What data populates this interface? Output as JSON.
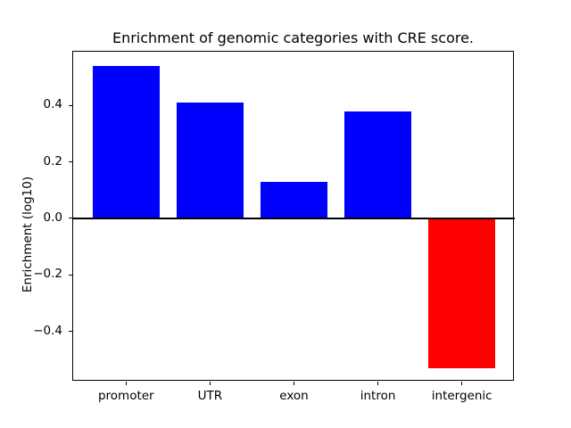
{
  "chart_data": {
    "type": "bar",
    "title": "Enrichment of genomic categories with CRE score.",
    "ylabel": "Enrichment (log10)",
    "xlabel": "",
    "categories": [
      "promoter",
      "UTR",
      "exon",
      "intron",
      "intergenic"
    ],
    "values": [
      0.54,
      0.41,
      0.13,
      0.38,
      -0.53
    ],
    "bar_colors": [
      "#0000ff",
      "#0000ff",
      "#0000ff",
      "#0000ff",
      "#ff0000"
    ],
    "positive_color": "#0000ff",
    "negative_color": "#ff0000",
    "ylim": [
      -0.578,
      0.59
    ],
    "xlim": [
      -0.63,
      4.63
    ],
    "ytick_values": [
      0.4,
      0.2,
      0.0,
      -0.2,
      -0.4
    ],
    "ytick_labels": [
      "0.4",
      "0.2",
      "0.0",
      "−0.2",
      "−0.4"
    ],
    "zero_line": true,
    "bar_width_fraction": 0.8,
    "grid": false,
    "legend": null,
    "background": "#ffffff",
    "axis_color": "#000000"
  }
}
